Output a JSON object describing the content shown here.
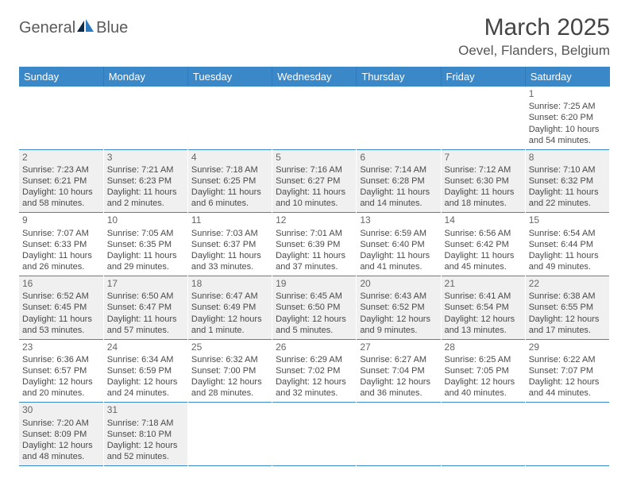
{
  "logo": {
    "text_part1": "General",
    "text_part2": "Blue"
  },
  "header": {
    "month_title": "March 2025",
    "location": "Oevel, Flanders, Belgium"
  },
  "colors": {
    "header_bg": "#3b88c9",
    "header_text": "#ffffff",
    "row_odd_bg": "#f0f0f0",
    "row_even_bg": "#ffffff",
    "divider": "#3b88c9",
    "text": "#4a4a4a",
    "logo_gray": "#5a5a5a",
    "logo_blue": "#2f7bbf"
  },
  "typography": {
    "month_title_size": 30,
    "location_size": 17,
    "day_header_size": 13,
    "cell_size": 11
  },
  "day_headers": [
    "Sunday",
    "Monday",
    "Tuesday",
    "Wednesday",
    "Thursday",
    "Friday",
    "Saturday"
  ],
  "weeks": [
    [
      null,
      null,
      null,
      null,
      null,
      null,
      {
        "n": "1",
        "sunrise": "Sunrise: 7:25 AM",
        "sunset": "Sunset: 6:20 PM",
        "daylight": "Daylight: 10 hours and 54 minutes."
      }
    ],
    [
      {
        "n": "2",
        "sunrise": "Sunrise: 7:23 AM",
        "sunset": "Sunset: 6:21 PM",
        "daylight": "Daylight: 10 hours and 58 minutes."
      },
      {
        "n": "3",
        "sunrise": "Sunrise: 7:21 AM",
        "sunset": "Sunset: 6:23 PM",
        "daylight": "Daylight: 11 hours and 2 minutes."
      },
      {
        "n": "4",
        "sunrise": "Sunrise: 7:18 AM",
        "sunset": "Sunset: 6:25 PM",
        "daylight": "Daylight: 11 hours and 6 minutes."
      },
      {
        "n": "5",
        "sunrise": "Sunrise: 7:16 AM",
        "sunset": "Sunset: 6:27 PM",
        "daylight": "Daylight: 11 hours and 10 minutes."
      },
      {
        "n": "6",
        "sunrise": "Sunrise: 7:14 AM",
        "sunset": "Sunset: 6:28 PM",
        "daylight": "Daylight: 11 hours and 14 minutes."
      },
      {
        "n": "7",
        "sunrise": "Sunrise: 7:12 AM",
        "sunset": "Sunset: 6:30 PM",
        "daylight": "Daylight: 11 hours and 18 minutes."
      },
      {
        "n": "8",
        "sunrise": "Sunrise: 7:10 AM",
        "sunset": "Sunset: 6:32 PM",
        "daylight": "Daylight: 11 hours and 22 minutes."
      }
    ],
    [
      {
        "n": "9",
        "sunrise": "Sunrise: 7:07 AM",
        "sunset": "Sunset: 6:33 PM",
        "daylight": "Daylight: 11 hours and 26 minutes."
      },
      {
        "n": "10",
        "sunrise": "Sunrise: 7:05 AM",
        "sunset": "Sunset: 6:35 PM",
        "daylight": "Daylight: 11 hours and 29 minutes."
      },
      {
        "n": "11",
        "sunrise": "Sunrise: 7:03 AM",
        "sunset": "Sunset: 6:37 PM",
        "daylight": "Daylight: 11 hours and 33 minutes."
      },
      {
        "n": "12",
        "sunrise": "Sunrise: 7:01 AM",
        "sunset": "Sunset: 6:39 PM",
        "daylight": "Daylight: 11 hours and 37 minutes."
      },
      {
        "n": "13",
        "sunrise": "Sunrise: 6:59 AM",
        "sunset": "Sunset: 6:40 PM",
        "daylight": "Daylight: 11 hours and 41 minutes."
      },
      {
        "n": "14",
        "sunrise": "Sunrise: 6:56 AM",
        "sunset": "Sunset: 6:42 PM",
        "daylight": "Daylight: 11 hours and 45 minutes."
      },
      {
        "n": "15",
        "sunrise": "Sunrise: 6:54 AM",
        "sunset": "Sunset: 6:44 PM",
        "daylight": "Daylight: 11 hours and 49 minutes."
      }
    ],
    [
      {
        "n": "16",
        "sunrise": "Sunrise: 6:52 AM",
        "sunset": "Sunset: 6:45 PM",
        "daylight": "Daylight: 11 hours and 53 minutes."
      },
      {
        "n": "17",
        "sunrise": "Sunrise: 6:50 AM",
        "sunset": "Sunset: 6:47 PM",
        "daylight": "Daylight: 11 hours and 57 minutes."
      },
      {
        "n": "18",
        "sunrise": "Sunrise: 6:47 AM",
        "sunset": "Sunset: 6:49 PM",
        "daylight": "Daylight: 12 hours and 1 minute."
      },
      {
        "n": "19",
        "sunrise": "Sunrise: 6:45 AM",
        "sunset": "Sunset: 6:50 PM",
        "daylight": "Daylight: 12 hours and 5 minutes."
      },
      {
        "n": "20",
        "sunrise": "Sunrise: 6:43 AM",
        "sunset": "Sunset: 6:52 PM",
        "daylight": "Daylight: 12 hours and 9 minutes."
      },
      {
        "n": "21",
        "sunrise": "Sunrise: 6:41 AM",
        "sunset": "Sunset: 6:54 PM",
        "daylight": "Daylight: 12 hours and 13 minutes."
      },
      {
        "n": "22",
        "sunrise": "Sunrise: 6:38 AM",
        "sunset": "Sunset: 6:55 PM",
        "daylight": "Daylight: 12 hours and 17 minutes."
      }
    ],
    [
      {
        "n": "23",
        "sunrise": "Sunrise: 6:36 AM",
        "sunset": "Sunset: 6:57 PM",
        "daylight": "Daylight: 12 hours and 20 minutes."
      },
      {
        "n": "24",
        "sunrise": "Sunrise: 6:34 AM",
        "sunset": "Sunset: 6:59 PM",
        "daylight": "Daylight: 12 hours and 24 minutes."
      },
      {
        "n": "25",
        "sunrise": "Sunrise: 6:32 AM",
        "sunset": "Sunset: 7:00 PM",
        "daylight": "Daylight: 12 hours and 28 minutes."
      },
      {
        "n": "26",
        "sunrise": "Sunrise: 6:29 AM",
        "sunset": "Sunset: 7:02 PM",
        "daylight": "Daylight: 12 hours and 32 minutes."
      },
      {
        "n": "27",
        "sunrise": "Sunrise: 6:27 AM",
        "sunset": "Sunset: 7:04 PM",
        "daylight": "Daylight: 12 hours and 36 minutes."
      },
      {
        "n": "28",
        "sunrise": "Sunrise: 6:25 AM",
        "sunset": "Sunset: 7:05 PM",
        "daylight": "Daylight: 12 hours and 40 minutes."
      },
      {
        "n": "29",
        "sunrise": "Sunrise: 6:22 AM",
        "sunset": "Sunset: 7:07 PM",
        "daylight": "Daylight: 12 hours and 44 minutes."
      }
    ],
    [
      {
        "n": "30",
        "sunrise": "Sunrise: 7:20 AM",
        "sunset": "Sunset: 8:09 PM",
        "daylight": "Daylight: 12 hours and 48 minutes."
      },
      {
        "n": "31",
        "sunrise": "Sunrise: 7:18 AM",
        "sunset": "Sunset: 8:10 PM",
        "daylight": "Daylight: 12 hours and 52 minutes."
      },
      null,
      null,
      null,
      null,
      null
    ]
  ]
}
